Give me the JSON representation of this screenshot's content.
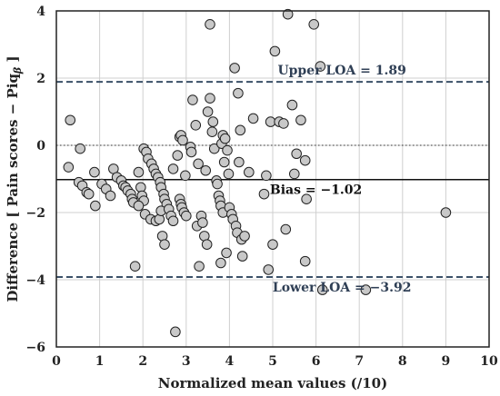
{
  "chart_data": {
    "type": "scatter",
    "xlabel": "Normalized mean values (/10)",
    "ylabel": "Difference [ Pain scores − Piq",
    "ylabel_subscript": "β",
    "ylabel_end": " ]",
    "xlim": [
      0,
      10
    ],
    "ylim": [
      -6,
      4
    ],
    "xticks": [
      0,
      1,
      2,
      3,
      4,
      5,
      6,
      7,
      8,
      9,
      10
    ],
    "yticks": [
      -6,
      -4,
      -2,
      0,
      2,
      4
    ],
    "grid": true,
    "reference_lines": [
      {
        "name": "Upper LOA",
        "value": 1.89,
        "label": "Upper LOA = 1.89",
        "style": "dashed"
      },
      {
        "name": "Bias",
        "value": -1.02,
        "label": "Bias = −1.02",
        "style": "solid"
      },
      {
        "name": "Lower LOA",
        "value": -3.92,
        "label": "Lower LOA = −3.92",
        "style": "dashed"
      },
      {
        "name": "Zero",
        "value": 0,
        "label": "",
        "style": "dotted"
      }
    ],
    "points": [
      [
        0.32,
        0.75
      ],
      [
        0.28,
        -0.65
      ],
      [
        0.55,
        -0.1
      ],
      [
        0.52,
        -1.1
      ],
      [
        0.6,
        -1.2
      ],
      [
        0.7,
        -1.4
      ],
      [
        0.75,
        -1.45
      ],
      [
        0.88,
        -0.8
      ],
      [
        0.9,
        -1.8
      ],
      [
        1.05,
        -1.15
      ],
      [
        1.15,
        -1.3
      ],
      [
        1.25,
        -1.5
      ],
      [
        1.32,
        -0.7
      ],
      [
        1.4,
        -0.95
      ],
      [
        1.5,
        -1.05
      ],
      [
        1.55,
        -1.2
      ],
      [
        1.6,
        -1.25
      ],
      [
        1.65,
        -1.35
      ],
      [
        1.72,
        -1.45
      ],
      [
        1.75,
        -1.6
      ],
      [
        1.78,
        -1.7
      ],
      [
        1.82,
        -3.6
      ],
      [
        1.9,
        -0.8
      ],
      [
        1.95,
        -1.25
      ],
      [
        1.98,
        -1.5
      ],
      [
        2.02,
        -1.65
      ],
      [
        1.9,
        -1.8
      ],
      [
        2.02,
        -0.1
      ],
      [
        2.08,
        -0.2
      ],
      [
        2.12,
        -0.4
      ],
      [
        2.2,
        -0.55
      ],
      [
        2.25,
        -0.7
      ],
      [
        2.3,
        -0.85
      ],
      [
        2.35,
        -0.95
      ],
      [
        2.4,
        -1.1
      ],
      [
        2.42,
        -1.25
      ],
      [
        2.48,
        -1.45
      ],
      [
        2.5,
        -1.6
      ],
      [
        2.55,
        -1.75
      ],
      [
        2.05,
        -2.05
      ],
      [
        2.18,
        -2.2
      ],
      [
        2.3,
        -2.25
      ],
      [
        2.38,
        -2.2
      ],
      [
        2.42,
        -1.95
      ],
      [
        2.45,
        -2.7
      ],
      [
        2.5,
        -2.95
      ],
      [
        2.6,
        -1.9
      ],
      [
        2.65,
        -2.1
      ],
      [
        2.7,
        -2.25
      ],
      [
        2.7,
        -0.7
      ],
      [
        2.75,
        -5.55
      ],
      [
        2.8,
        -0.3
      ],
      [
        2.85,
        0.25
      ],
      [
        2.88,
        0.3
      ],
      [
        2.92,
        0.15
      ],
      [
        2.98,
        -0.9
      ],
      [
        2.85,
        -1.6
      ],
      [
        2.88,
        -1.75
      ],
      [
        2.9,
        -1.85
      ],
      [
        2.95,
        -2.0
      ],
      [
        3.0,
        -2.1
      ],
      [
        3.1,
        -0.05
      ],
      [
        3.12,
        -0.2
      ],
      [
        3.15,
        1.35
      ],
      [
        3.22,
        0.6
      ],
      [
        3.25,
        -2.4
      ],
      [
        3.28,
        -0.55
      ],
      [
        3.3,
        -3.6
      ],
      [
        3.35,
        -2.1
      ],
      [
        3.38,
        -2.3
      ],
      [
        3.42,
        -2.7
      ],
      [
        3.45,
        -0.75
      ],
      [
        3.48,
        -2.95
      ],
      [
        3.5,
        1.0
      ],
      [
        3.55,
        1.4
      ],
      [
        3.55,
        3.6
      ],
      [
        3.6,
        0.4
      ],
      [
        3.62,
        0.7
      ],
      [
        3.65,
        -0.1
      ],
      [
        3.7,
        -1.05
      ],
      [
        3.72,
        -1.15
      ],
      [
        3.75,
        -1.5
      ],
      [
        3.78,
        -1.65
      ],
      [
        3.8,
        -1.8
      ],
      [
        3.85,
        -2.0
      ],
      [
        3.8,
        -3.5
      ],
      [
        3.82,
        0.05
      ],
      [
        3.85,
        0.3
      ],
      [
        3.88,
        -0.5
      ],
      [
        3.9,
        0.2
      ],
      [
        3.93,
        -3.2
      ],
      [
        3.95,
        -0.15
      ],
      [
        3.98,
        -0.85
      ],
      [
        4.0,
        -1.85
      ],
      [
        4.05,
        -2.05
      ],
      [
        4.08,
        -2.2
      ],
      [
        4.12,
        2.3
      ],
      [
        4.15,
        -2.4
      ],
      [
        4.18,
        -2.6
      ],
      [
        4.2,
        1.55
      ],
      [
        4.22,
        -0.5
      ],
      [
        4.25,
        0.45
      ],
      [
        4.28,
        -2.8
      ],
      [
        4.3,
        -3.3
      ],
      [
        4.35,
        -2.7
      ],
      [
        4.45,
        -0.8
      ],
      [
        4.55,
        0.8
      ],
      [
        4.8,
        -1.45
      ],
      [
        4.85,
        -0.9
      ],
      [
        4.9,
        -3.7
      ],
      [
        4.95,
        0.7
      ],
      [
        5.0,
        -2.95
      ],
      [
        5.05,
        2.8
      ],
      [
        5.15,
        0.7
      ],
      [
        5.25,
        0.65
      ],
      [
        5.3,
        -2.5
      ],
      [
        5.35,
        3.9
      ],
      [
        5.45,
        1.2
      ],
      [
        5.5,
        -0.85
      ],
      [
        5.55,
        -0.25
      ],
      [
        5.65,
        0.75
      ],
      [
        5.75,
        -0.45
      ],
      [
        5.75,
        -3.45
      ],
      [
        5.78,
        -1.6
      ],
      [
        5.95,
        3.6
      ],
      [
        6.1,
        2.35
      ],
      [
        6.15,
        -4.3
      ],
      [
        7.15,
        -4.3
      ],
      [
        9.0,
        -2.0
      ]
    ]
  }
}
